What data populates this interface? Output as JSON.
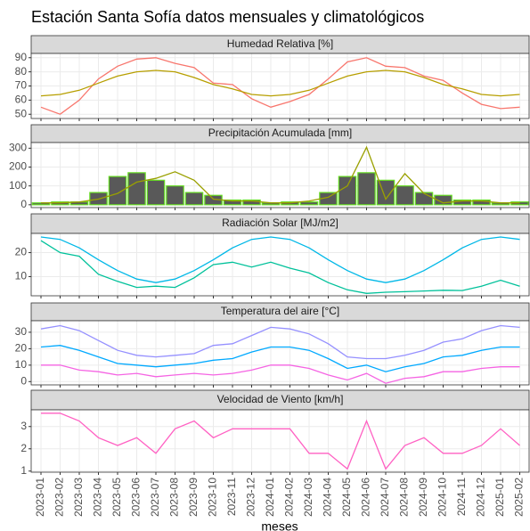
{
  "title": "Estación Santa Sofía datos mensuales y climatológicos",
  "xlabel": "meses",
  "categories": [
    "2023-01",
    "2023-02",
    "2023-03",
    "2023-04",
    "2023-05",
    "2023-06",
    "2023-07",
    "2023-08",
    "2023-09",
    "2023-10",
    "2023-11",
    "2023-12",
    "2024-01",
    "2024-02",
    "2024-03",
    "2024-04",
    "2024-05",
    "2024-06",
    "2024-07",
    "2024-08",
    "2024-09",
    "2024-10",
    "2024-11",
    "2024-12",
    "2025-01",
    "2025-02"
  ],
  "chart_data": [
    {
      "type": "line",
      "title": "Humedad Relativa [%]",
      "ylim": [
        47,
        93
      ],
      "yticks": [
        50,
        60,
        70,
        80,
        90
      ],
      "grid": true,
      "series": [
        {
          "type": "line",
          "color": "#F8766D",
          "values": [
            55,
            50,
            60,
            75,
            84,
            89,
            90,
            86,
            83,
            72,
            71,
            61,
            55,
            59,
            64,
            75,
            87,
            90,
            84,
            83,
            77,
            74,
            65,
            57,
            54,
            55
          ]
        },
        {
          "type": "line",
          "color": "#B79F00",
          "values": [
            63,
            64,
            67,
            72,
            77,
            80,
            81,
            80,
            76,
            71,
            68,
            64,
            63,
            64,
            67,
            72,
            77,
            80,
            81,
            80,
            76,
            71,
            68,
            64,
            63,
            64
          ]
        }
      ]
    },
    {
      "type": "bar",
      "title": "Precipitación Acumulada [mm]",
      "ylim": [
        -15,
        330
      ],
      "yticks": [
        0,
        100,
        200,
        300
      ],
      "grid": true,
      "series": [
        {
          "type": "bar",
          "color": "#595959",
          "stroke": "#66DD22",
          "values": [
            10,
            15,
            15,
            65,
            150,
            170,
            130,
            100,
            65,
            50,
            25,
            25,
            10,
            15,
            15,
            65,
            150,
            170,
            130,
            100,
            65,
            50,
            25,
            25,
            10,
            15
          ]
        },
        {
          "type": "line",
          "color": "#9AA000",
          "values": [
            10,
            10,
            15,
            30,
            60,
            120,
            140,
            175,
            130,
            30,
            20,
            20,
            10,
            10,
            20,
            40,
            100,
            305,
            30,
            165,
            60,
            10,
            20,
            20,
            10,
            10
          ]
        }
      ]
    },
    {
      "type": "line",
      "title": "Radiación Solar [MJ/m2]",
      "ylim": [
        2,
        28
      ],
      "yticks": [
        10,
        20
      ],
      "grid": true,
      "series": [
        {
          "type": "line",
          "color": "#00B8E7",
          "values": [
            26.5,
            25.5,
            22,
            17,
            12.5,
            9,
            7.5,
            9,
            12.5,
            17,
            22,
            25.5,
            26.5,
            25.5,
            22,
            17,
            12.5,
            9,
            7.5,
            9,
            12.5,
            17,
            22,
            25.5,
            26.5,
            25.5
          ]
        },
        {
          "type": "line",
          "color": "#00C19A",
          "values": [
            25,
            20,
            18.5,
            11,
            8,
            5.5,
            6,
            5.5,
            9.5,
            15,
            16,
            14,
            16,
            13.5,
            11.5,
            7.5,
            4.5,
            3,
            3.5,
            3.7,
            4,
            4.3,
            4.2,
            6,
            8.5,
            6
          ]
        }
      ]
    },
    {
      "type": "line",
      "title": "Temperatura del aire [°C]",
      "ylim": [
        -2,
        37
      ],
      "yticks": [
        0,
        10,
        20,
        30
      ],
      "grid": true,
      "series": [
        {
          "type": "line",
          "color": "#9590FF",
          "values": [
            32,
            34,
            31,
            25,
            19,
            16,
            15,
            16,
            17,
            22,
            23,
            28,
            33,
            32,
            29,
            23,
            15,
            14,
            14,
            16,
            19,
            24,
            26,
            31,
            34,
            33
          ]
        },
        {
          "type": "line",
          "color": "#00A9FF",
          "values": [
            21,
            22,
            19,
            15,
            11,
            10,
            9,
            10,
            11,
            13,
            14,
            18,
            21,
            21,
            19,
            14,
            8,
            10,
            6,
            9,
            11,
            15,
            16,
            19,
            21,
            21
          ]
        },
        {
          "type": "line",
          "color": "#F564E3",
          "values": [
            10,
            10,
            7,
            6,
            4,
            5,
            3,
            4,
            5,
            4,
            5,
            7,
            10,
            10,
            8,
            4,
            1,
            5,
            -1,
            2,
            3,
            6,
            6,
            8,
            9,
            9
          ]
        }
      ]
    },
    {
      "type": "line",
      "title": "Velocidad de Viento [km/h]",
      "ylim": [
        0.95,
        3.75
      ],
      "yticks": [
        1,
        2,
        3
      ],
      "grid": true,
      "series": [
        {
          "type": "line",
          "color": "#FF61C3",
          "values": [
            3.6,
            3.6,
            3.25,
            2.5,
            2.15,
            2.5,
            1.8,
            2.9,
            3.25,
            2.5,
            2.9,
            2.9,
            2.9,
            2.9,
            1.8,
            1.8,
            1.1,
            3.25,
            1.1,
            2.15,
            2.5,
            1.8,
            1.8,
            2.15,
            2.9,
            2.15
          ]
        }
      ]
    }
  ]
}
